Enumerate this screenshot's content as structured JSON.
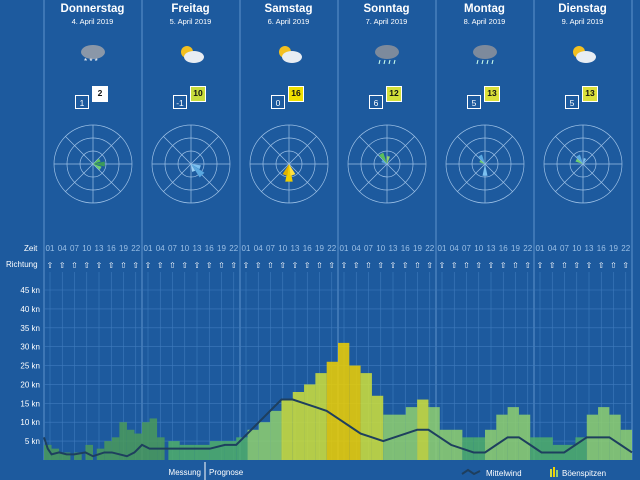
{
  "days": [
    {
      "name": "Donnerstag",
      "date": "4. April 2019",
      "tmin": "1",
      "tmax": "2",
      "tmax_color": "#ffffff",
      "weather": "snow-cloud-icon"
    },
    {
      "name": "Freitag",
      "date": "5. April 2019",
      "tmin": "-1",
      "tmax": "10",
      "tmax_color": "#c8dc3c",
      "weather": "sun-cloud-icon"
    },
    {
      "name": "Samstag",
      "date": "6. April 2019",
      "tmin": "0",
      "tmax": "16",
      "tmax_color": "#f0e000",
      "weather": "sun-cloud-icon"
    },
    {
      "name": "Sonntag",
      "date": "7. April 2019",
      "tmin": "6",
      "tmax": "12",
      "tmax_color": "#d4e03a",
      "weather": "rain-cloud-icon"
    },
    {
      "name": "Montag",
      "date": "8. April 2019",
      "tmin": "5",
      "tmax": "13",
      "tmax_color": "#dce03a",
      "weather": "rain-cloud-icon"
    },
    {
      "name": "Dienstag",
      "date": "9. April 2019",
      "tmin": "5",
      "tmax": "13",
      "tmax_color": "#dce03a",
      "weather": "sun-cloud-icon"
    }
  ],
  "labels": {
    "zeit": "Zeit",
    "richtung": "Richtung",
    "messung": "Messung",
    "prognose": "Prognose",
    "mittelwind": "Mittelwind",
    "boeenspitzen": "Böenspitzen"
  },
  "hours": [
    "01",
    "04",
    "07",
    "10",
    "13",
    "16",
    "19",
    "22"
  ],
  "chart_data": {
    "type": "bar",
    "ylabel": "",
    "ylim": [
      0,
      45
    ],
    "yticks": [
      "5 kn",
      "10 kn",
      "15 kn",
      "20 kn",
      "25 kn",
      "30 kn",
      "35 kn",
      "40 kn",
      "45 kn"
    ],
    "gust_bars": [
      {
        "x": 0,
        "w": 2,
        "v": 4
      },
      {
        "x": 2,
        "w": 2,
        "v": 3
      },
      {
        "x": 4,
        "w": 3,
        "v": 2
      },
      {
        "x": 8,
        "w": 2,
        "v": 2
      },
      {
        "x": 11,
        "w": 2,
        "v": 4
      },
      {
        "x": 14,
        "w": 2,
        "v": 3
      },
      {
        "x": 16,
        "w": 2,
        "v": 5
      },
      {
        "x": 18,
        "w": 2,
        "v": 6
      },
      {
        "x": 20,
        "w": 2,
        "v": 10
      },
      {
        "x": 22,
        "w": 2,
        "v": 8
      },
      {
        "x": 24,
        "w": 2,
        "v": 7
      },
      {
        "x": 26,
        "w": 2,
        "v": 10
      },
      {
        "x": 28,
        "w": 2,
        "v": 11
      },
      {
        "x": 30,
        "w": 2,
        "v": 6
      },
      {
        "x": 33,
        "w": 3,
        "v": 5
      },
      {
        "x": 36,
        "w": 4,
        "v": 4
      },
      {
        "x": 40,
        "w": 4,
        "v": 4
      },
      {
        "x": 44,
        "w": 4,
        "v": 5
      },
      {
        "x": 48,
        "w": 3,
        "v": 5
      },
      {
        "x": 51,
        "w": 3,
        "v": 6
      },
      {
        "x": 54,
        "w": 3,
        "v": 8
      },
      {
        "x": 57,
        "w": 3,
        "v": 10
      },
      {
        "x": 60,
        "w": 3,
        "v": 13
      },
      {
        "x": 63,
        "w": 3,
        "v": 16
      },
      {
        "x": 66,
        "w": 3,
        "v": 18
      },
      {
        "x": 69,
        "w": 3,
        "v": 20
      },
      {
        "x": 72,
        "w": 3,
        "v": 23
      },
      {
        "x": 75,
        "w": 3,
        "v": 26
      },
      {
        "x": 78,
        "w": 3,
        "v": 31
      },
      {
        "x": 81,
        "w": 3,
        "v": 25
      },
      {
        "x": 84,
        "w": 3,
        "v": 23
      },
      {
        "x": 87,
        "w": 3,
        "v": 17
      },
      {
        "x": 90,
        "w": 3,
        "v": 12
      },
      {
        "x": 93,
        "w": 3,
        "v": 12
      },
      {
        "x": 96,
        "w": 3,
        "v": 14
      },
      {
        "x": 99,
        "w": 3,
        "v": 16
      },
      {
        "x": 102,
        "w": 3,
        "v": 14
      },
      {
        "x": 105,
        "w": 3,
        "v": 8
      },
      {
        "x": 108,
        "w": 3,
        "v": 8
      },
      {
        "x": 111,
        "w": 3,
        "v": 6
      },
      {
        "x": 114,
        "w": 3,
        "v": 6
      },
      {
        "x": 117,
        "w": 3,
        "v": 8
      },
      {
        "x": 120,
        "w": 3,
        "v": 12
      },
      {
        "x": 123,
        "w": 3,
        "v": 14
      },
      {
        "x": 126,
        "w": 3,
        "v": 12
      },
      {
        "x": 129,
        "w": 3,
        "v": 6
      },
      {
        "x": 132,
        "w": 3,
        "v": 6
      },
      {
        "x": 135,
        "w": 3,
        "v": 4
      },
      {
        "x": 138,
        "w": 3,
        "v": 4
      },
      {
        "x": 141,
        "w": 3,
        "v": 6
      },
      {
        "x": 144,
        "w": 3,
        "v": 12
      },
      {
        "x": 147,
        "w": 3,
        "v": 14
      },
      {
        "x": 150,
        "w": 3,
        "v": 12
      },
      {
        "x": 153,
        "w": 3,
        "v": 8
      }
    ],
    "mean_wind": [
      [
        0,
        6
      ],
      [
        1,
        3
      ],
      [
        2,
        1.5
      ],
      [
        4,
        2
      ],
      [
        6,
        1.5
      ],
      [
        8,
        1.5
      ],
      [
        11,
        2
      ],
      [
        13,
        1
      ],
      [
        16,
        2
      ],
      [
        18,
        2
      ],
      [
        20,
        1.5
      ],
      [
        22,
        1
      ],
      [
        24,
        2
      ],
      [
        26,
        4
      ],
      [
        28,
        3
      ],
      [
        30,
        3
      ],
      [
        33,
        3
      ],
      [
        36,
        3
      ],
      [
        40,
        3
      ],
      [
        44,
        3
      ],
      [
        48,
        4
      ],
      [
        51,
        4
      ],
      [
        54,
        7
      ],
      [
        57,
        10
      ],
      [
        60,
        13
      ],
      [
        63,
        16
      ],
      [
        66,
        16
      ],
      [
        69,
        15
      ],
      [
        72,
        14
      ],
      [
        75,
        13
      ],
      [
        78,
        11
      ],
      [
        81,
        9
      ],
      [
        84,
        7
      ],
      [
        87,
        6
      ],
      [
        90,
        5
      ],
      [
        93,
        6
      ],
      [
        96,
        7
      ],
      [
        99,
        8
      ],
      [
        102,
        8
      ],
      [
        105,
        6
      ],
      [
        108,
        4
      ],
      [
        111,
        3
      ],
      [
        114,
        2
      ],
      [
        117,
        2
      ],
      [
        120,
        4
      ],
      [
        123,
        6
      ],
      [
        126,
        6
      ],
      [
        129,
        4
      ],
      [
        132,
        2
      ],
      [
        135,
        2
      ],
      [
        138,
        2
      ],
      [
        141,
        4
      ],
      [
        144,
        6
      ],
      [
        147,
        6
      ],
      [
        150,
        6
      ],
      [
        153,
        4
      ],
      [
        156,
        2
      ]
    ]
  }
}
